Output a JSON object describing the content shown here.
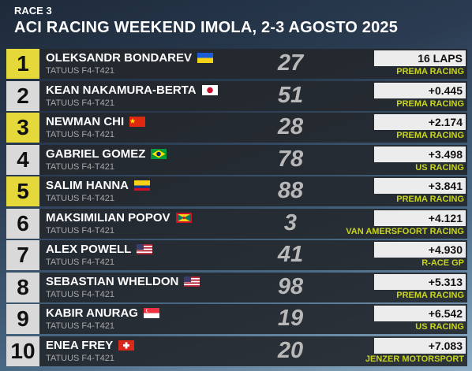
{
  "header": {
    "race": "RACE 3",
    "title": "ACI RACING WEEKEND IMOLA, 2-3 AGOSTO 2025"
  },
  "rows": [
    {
      "position": 1,
      "driver": "OLEKSANDR BONDAREV",
      "car": "TATUUS F4-T421",
      "number": 27,
      "gap": "16 LAPS",
      "team": "PREMA RACING"
    },
    {
      "position": 2,
      "driver": "KEAN NAKAMURA-BERTA",
      "car": "TATUUS F4-T421",
      "number": 51,
      "gap": "+0.445",
      "team": "PREMA RACING"
    },
    {
      "position": 3,
      "driver": "NEWMAN CHI",
      "car": "TATUUS F4-T421",
      "number": 28,
      "gap": "+2.174",
      "team": "PREMA RACING"
    },
    {
      "position": 4,
      "driver": "GABRIEL GOMEZ",
      "car": "TATUUS F4-T421",
      "number": 78,
      "gap": "+3.498",
      "team": "US RACING"
    },
    {
      "position": 5,
      "driver": "SALIM HANNA",
      "car": "TATUUS F4-T421",
      "number": 88,
      "gap": "+3.841",
      "team": "PREMA RACING"
    },
    {
      "position": 6,
      "driver": "MAKSIMILIAN POPOV",
      "car": "TATUUS F4-T421",
      "number": 3,
      "gap": "+4.121",
      "team": "VAN AMERSFOORT RACING"
    },
    {
      "position": 7,
      "driver": "ALEX POWELL",
      "car": "TATUUS F4-T421",
      "number": 41,
      "gap": "+4.930",
      "team": "R-ACE GP"
    },
    {
      "position": 8,
      "driver": "SEBASTIAN WHELDON",
      "car": "TATUUS F4-T421",
      "number": 98,
      "gap": "+5.313",
      "team": "PREMA RACING"
    },
    {
      "position": 9,
      "driver": "KABIR ANURAG",
      "car": "TATUUS F4-T421",
      "number": 19,
      "gap": "+6.542",
      "team": "US RACING"
    },
    {
      "position": 10,
      "driver": "ENEA FREY",
      "car": "TATUUS F4-T421",
      "number": 20,
      "gap": "+7.083",
      "team": "JENZER MOTORSPORT"
    }
  ]
}
